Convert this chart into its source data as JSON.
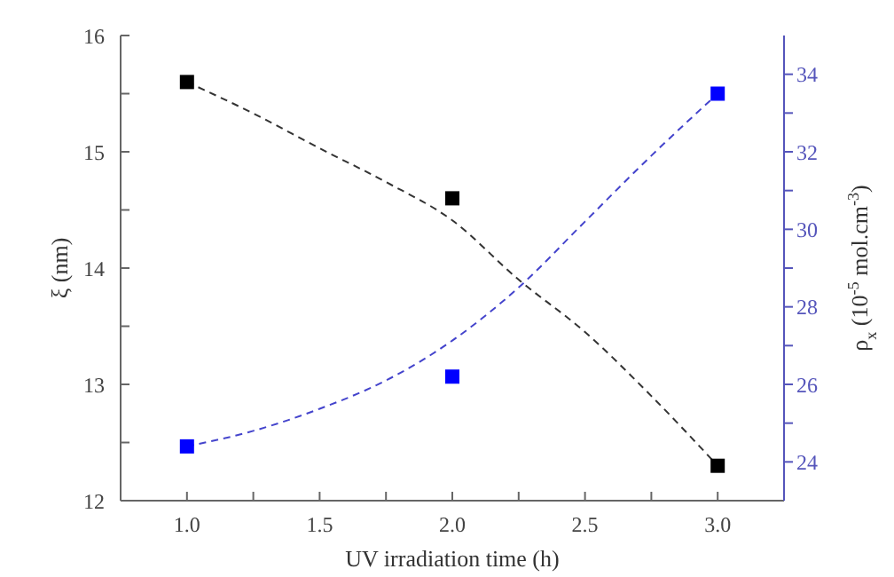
{
  "chart_data": {
    "type": "scatter",
    "xlabel": "UV irradiation time (h)",
    "ylabel": "ξ (nm)",
    "y2label": "ρ$_{x}$ (10$^{-5}$ mol.cm$^{-3}$)",
    "x": [
      1,
      2,
      3
    ],
    "series": [
      {
        "color": "#000000",
        "values": [
          15.6,
          14.6,
          12.3
        ],
        "marker": "square"
      },
      {
        "color": "#0000ff",
        "values": [
          24.4,
          26.2,
          33.5
        ],
        "marker": "square",
        "axis": "y2"
      },
      {
        "type": "line",
        "color": "#333333",
        "line_style": "dashed",
        "marker": "none",
        "x": [
          1,
          1.25,
          1.5,
          1.75,
          2,
          2.25,
          2.5,
          2.75,
          3
        ],
        "values": [
          15.6,
          15.33,
          15.03,
          14.74,
          14.41,
          13.9,
          13.45,
          12.9,
          12.3
        ]
      },
      {
        "type": "line",
        "color": "#4444cc",
        "line_style": "dashed",
        "marker": "none",
        "axis": "y2",
        "x": [
          1,
          1.25,
          1.5,
          1.75,
          2,
          2.25,
          2.5,
          2.75,
          3
        ],
        "values": [
          24.4,
          24.8,
          25.37,
          26.1,
          27.13,
          28.5,
          30.2,
          31.9,
          33.5
        ]
      }
    ],
    "xlim": [
      0.75,
      3.25
    ],
    "xticks": [
      {
        "value": 1,
        "label": "1.0"
      },
      {
        "value": 1.25,
        "label": null
      },
      {
        "value": 1.5,
        "label": "1.5"
      },
      {
        "value": 1.75,
        "label": null
      },
      {
        "value": 2,
        "label": "2.0"
      },
      {
        "value": 2.25,
        "label": null
      },
      {
        "value": 2.5,
        "label": "2.5"
      },
      {
        "value": 2.75,
        "label": null
      },
      {
        "value": 3,
        "label": "3.0"
      }
    ],
    "ylim": [
      12,
      16
    ],
    "yticks": [
      12,
      {
        "value": 12.5,
        "label": null
      },
      13,
      {
        "value": 13.5,
        "label": null
      },
      14,
      {
        "value": 14.5,
        "label": null
      },
      15,
      {
        "value": 15.5,
        "label": null
      },
      16
    ],
    "y2lim": [
      23,
      35
    ],
    "y2ticks": [
      24,
      {
        "value": 25,
        "label": null
      },
      26,
      {
        "value": 27,
        "label": null
      },
      28,
      {
        "value": 29,
        "label": null
      },
      30,
      {
        "value": 31,
        "label": null
      },
      32,
      {
        "value": 33,
        "label": null
      },
      34
    ],
    "grid": false,
    "legend": false
  }
}
